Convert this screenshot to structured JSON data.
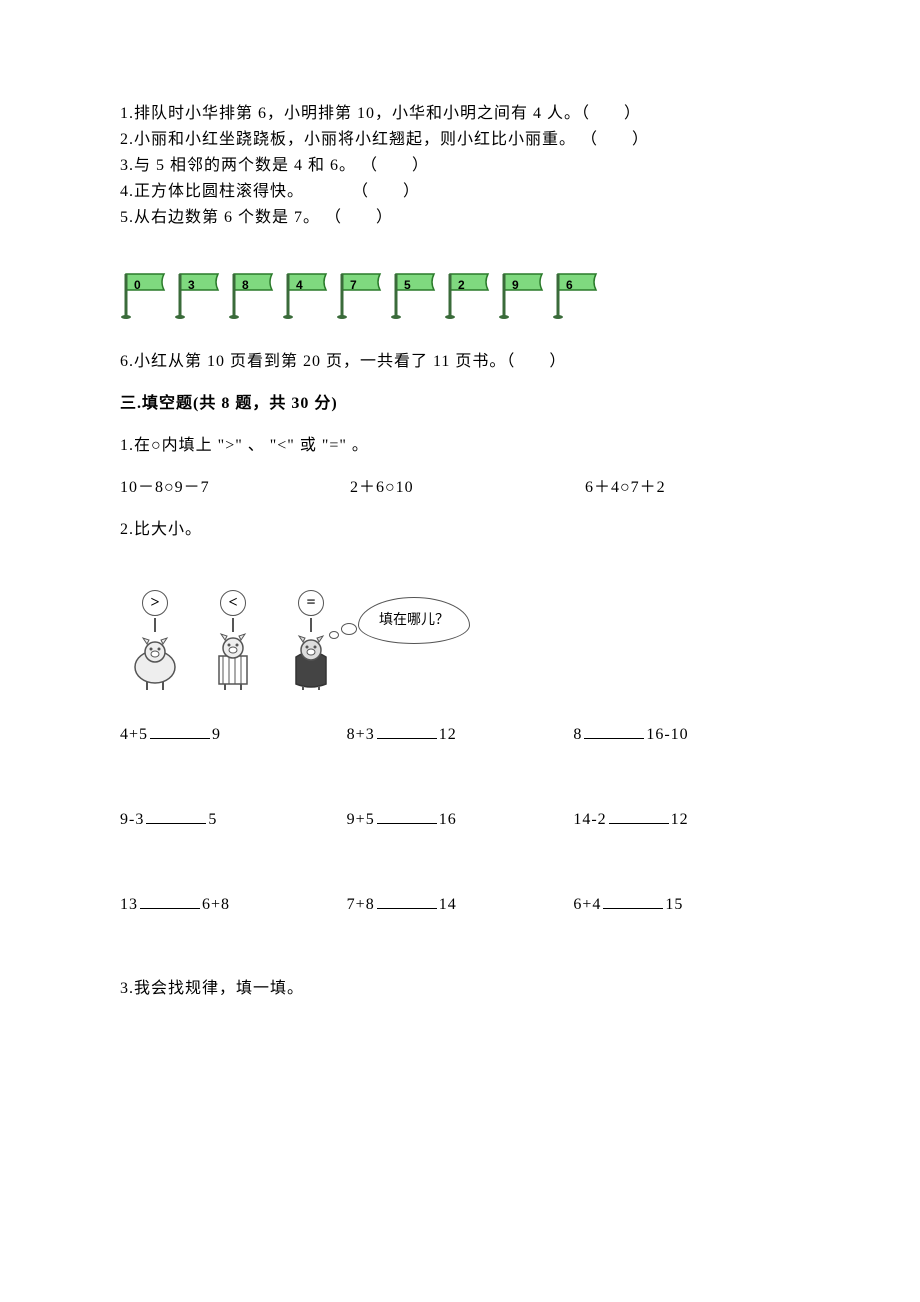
{
  "judgment": {
    "q1": "1.排队时小华排第 6，小明排第 10，小华和小明之间有 4 人。（　　）",
    "q2": "2.小丽和小红坐跷跷板，小丽将小红翘起，则小红比小丽重。 （　　）",
    "q3": "3.与 5 相邻的两个数是 4 和 6。 （　　）",
    "q4": "4.正方体比圆柱滚得快。　　　 （　　）",
    "q5": "5.从右边数第 6 个数是 7。 （　　）",
    "q6": "6.小红从第 10 页看到第 20 页，一共看了 11 页书。（　　）"
  },
  "flags": {
    "numbers": [
      "0",
      "3",
      "8",
      "4",
      "7",
      "5",
      "2",
      "9",
      "6"
    ],
    "fill": "#7fd97f",
    "stroke": "#2a7a2a",
    "pole": "#3a6b3a"
  },
  "section3": {
    "heading": "三.填空题(共 8 题，共 30 分)",
    "q1": {
      "prompt": "1.在○内填上 \">\" 、 \"<\" 或 \"=\" 。",
      "items": [
        "10－8○9－7",
        "2＋6○10",
        "6＋4○7＋2"
      ]
    },
    "q2": {
      "prompt": "2.比大小。",
      "speech": "填在哪儿？",
      "signs": [
        ">",
        "<",
        "="
      ],
      "grid": [
        [
          {
            "l": "4+5",
            "r": "9"
          },
          {
            "l": "8+3",
            "r": "12"
          },
          {
            "l": "8",
            "r": "16-10"
          }
        ],
        [
          {
            "l": "9-3",
            "r": "5"
          },
          {
            "l": "9+5",
            "r": "16"
          },
          {
            "l": "14-2",
            "r": "12"
          }
        ],
        [
          {
            "l": "13",
            "r": "6+8"
          },
          {
            "l": "7+8",
            "r": "14"
          },
          {
            "l": "6+4",
            "r": "15"
          }
        ]
      ]
    },
    "q3": {
      "prompt": "3.我会找规律，填一填。"
    }
  }
}
